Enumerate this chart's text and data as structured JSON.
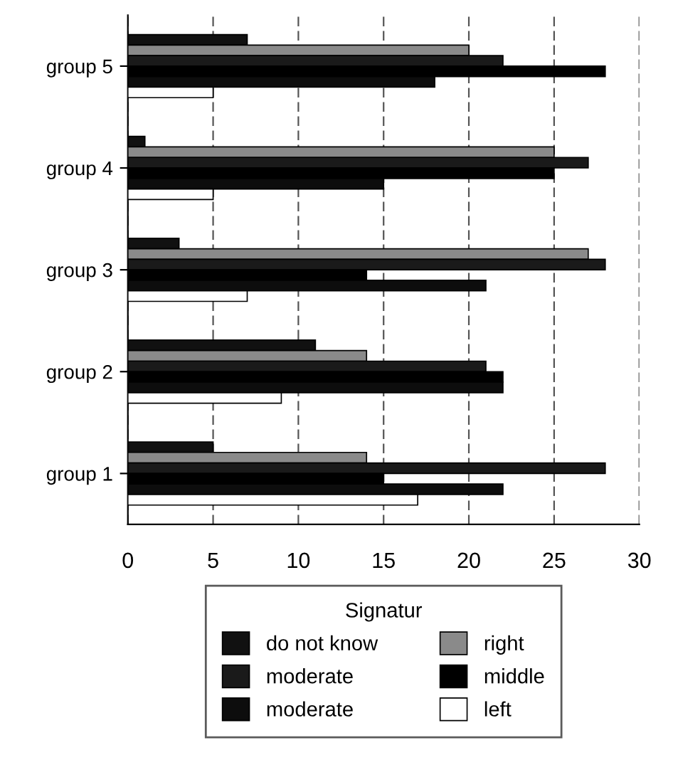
{
  "chart_data": {
    "type": "bar",
    "orientation": "horizontal",
    "categories": [
      "group 5",
      "group 4",
      "group 3",
      "group 2",
      "group 1"
    ],
    "series": [
      {
        "name": "do not know",
        "color": "#111111",
        "values": [
          7,
          1,
          3,
          11,
          5
        ]
      },
      {
        "name": "right",
        "color": "#8a8a8a",
        "values": [
          20,
          25,
          27,
          14,
          14
        ]
      },
      {
        "name": "moderate",
        "color": "#1a1a1a",
        "values": [
          22,
          27,
          28,
          21,
          28
        ]
      },
      {
        "name": "middle",
        "color": "#000000",
        "values": [
          28,
          25,
          14,
          22,
          15
        ]
      },
      {
        "name": "moderate",
        "color": "#0d0d0d",
        "values": [
          18,
          15,
          21,
          22,
          22
        ]
      },
      {
        "name": "left",
        "color": "#ffffff",
        "values": [
          5,
          5,
          7,
          9,
          17
        ]
      }
    ],
    "xlim": [
      0,
      30
    ],
    "xticks": [
      0,
      5,
      10,
      15,
      20,
      25,
      30
    ],
    "grid": "x",
    "legend": "bottom",
    "legend_title": "Signatur"
  }
}
